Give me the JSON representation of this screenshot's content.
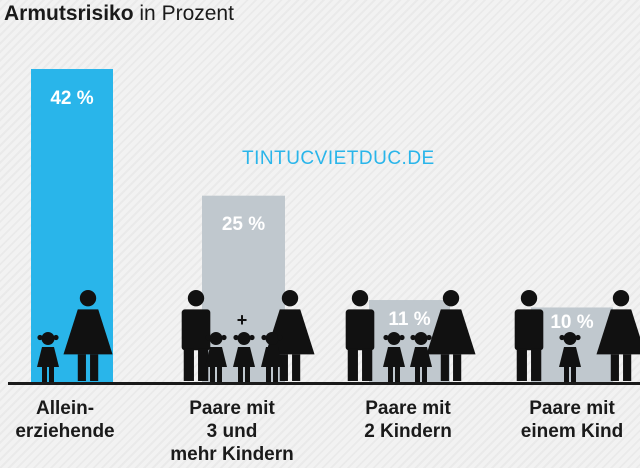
{
  "title": {
    "bold": "Armutsrisiko",
    "rest": "in Prozent"
  },
  "watermark": "TINTUCVIETDUC.DE",
  "colors": {
    "highlight": "#29b5ea",
    "bar": "#c0c8ce",
    "figure": "#111111",
    "axis": "#1a1a1a",
    "bar_label": "#ffffff"
  },
  "chart_data": {
    "type": "bar",
    "title": "Armutsrisiko in Prozent",
    "unit": "%",
    "categories": [
      [
        "Allein-",
        "erziehende"
      ],
      [
        "Paare mit",
        "3 und",
        "mehr Kindern"
      ],
      [
        "Paare mit",
        "2 Kindern"
      ],
      [
        "Paare mit",
        "einem Kind"
      ]
    ],
    "values": [
      42,
      25,
      11,
      10
    ],
    "value_labels": [
      "42 %",
      "25 %",
      "11 %",
      "10 %"
    ],
    "highlighted": [
      true,
      false,
      false,
      false
    ],
    "ylim": [
      0,
      42
    ],
    "grid": false,
    "icons": [
      {
        "adults": 1,
        "children": 1,
        "plus": false
      },
      {
        "adults": 2,
        "children": 3,
        "plus": true
      },
      {
        "adults": 2,
        "children": 2,
        "plus": false
      },
      {
        "adults": 2,
        "children": 1,
        "plus": false
      }
    ],
    "plus_symbol": "+"
  }
}
